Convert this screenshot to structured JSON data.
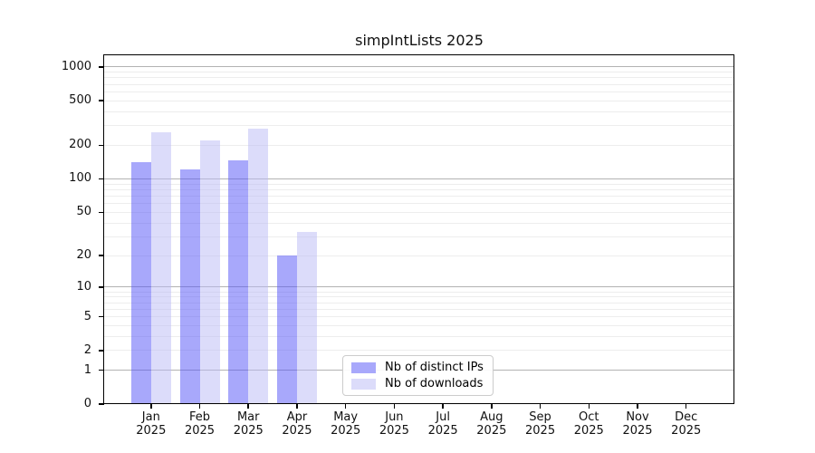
{
  "chart_data": {
    "type": "bar",
    "title": "simpIntLists 2025",
    "xlabel": "",
    "ylabel": "",
    "scale": "log1p (y position proportional to log10(value+1); 0 at baseline)",
    "grid": "horizontal; faint minor log gridlines, darker lines at 1/10/100/1000",
    "legend_position": "inside plot, lower center",
    "year": "2025",
    "categories": [
      "Jan",
      "Feb",
      "Mar",
      "Apr",
      "May",
      "Jun",
      "Jul",
      "Aug",
      "Sep",
      "Oct",
      "Nov",
      "Dec"
    ],
    "y_ticks": [
      0,
      1,
      2,
      5,
      10,
      20,
      50,
      100,
      200,
      500,
      1000
    ],
    "ylim": [
      0,
      1250
    ],
    "series": [
      {
        "name": "Nb of distinct IPs",
        "color": "#a8a8fb",
        "fill": "rgba(81,81,247,0.5)",
        "values": [
          140,
          122,
          148,
          20,
          0,
          0,
          0,
          0,
          0,
          0,
          0,
          0
        ]
      },
      {
        "name": "Nb of downloads",
        "color": "#dcdcfa",
        "fill": "rgba(185,185,245,0.5)",
        "values": [
          260,
          220,
          283,
          33,
          0,
          0,
          0,
          0,
          0,
          0,
          0,
          0
        ]
      }
    ]
  }
}
